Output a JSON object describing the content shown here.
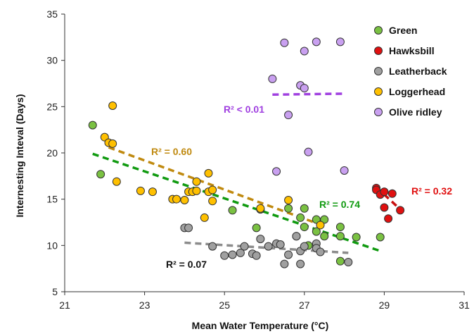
{
  "chart_data": {
    "type": "scatter",
    "xlabel": "Mean Water Temperature (°C)",
    "ylabel": "Internesting Inteval (Days)",
    "xlim": [
      21,
      31
    ],
    "ylim": [
      5,
      35
    ],
    "xticks": [
      "21",
      "23",
      "25",
      "27",
      "29",
      "31"
    ],
    "yticks": [
      "5",
      "10",
      "15",
      "20",
      "25",
      "30",
      "35"
    ],
    "grid": false,
    "legend": "top-right",
    "series": [
      {
        "name": "Green",
        "color": "#7ac142",
        "points": [
          [
            21.7,
            23.0
          ],
          [
            21.9,
            17.7
          ],
          [
            25.2,
            13.8
          ],
          [
            25.8,
            11.9
          ],
          [
            25.9,
            13.9
          ],
          [
            26.6,
            14.0
          ],
          [
            26.8,
            11.0
          ],
          [
            26.9,
            13.0
          ],
          [
            27.0,
            14.0
          ],
          [
            27.0,
            12.0
          ],
          [
            27.1,
            10.0
          ],
          [
            27.3,
            12.8
          ],
          [
            27.3,
            11.5
          ],
          [
            27.5,
            12.8
          ],
          [
            27.5,
            11.0
          ],
          [
            27.9,
            12.0
          ],
          [
            27.9,
            11.0
          ],
          [
            27.9,
            8.3
          ],
          [
            28.3,
            10.9
          ],
          [
            28.9,
            10.9
          ]
        ],
        "trend": {
          "x": [
            21.7,
            28.9
          ],
          "y": [
            19.9,
            9.4
          ],
          "label": "R² = 0.74"
        }
      },
      {
        "name": "Hawksbill",
        "color": "#e01010",
        "points": [
          [
            28.8,
            16.2
          ],
          [
            28.8,
            16.0
          ],
          [
            28.9,
            15.5
          ],
          [
            29.0,
            14.1
          ],
          [
            29.0,
            15.8
          ],
          [
            29.1,
            12.9
          ],
          [
            29.2,
            15.6
          ],
          [
            29.4,
            13.8
          ]
        ],
        "trend": {
          "x": [
            28.8,
            29.4
          ],
          "y": [
            16.3,
            13.9
          ],
          "label": "R² = 0.32"
        }
      },
      {
        "name": "Leatherback",
        "color": "#a0a0a0",
        "points": [
          [
            24.0,
            11.9
          ],
          [
            24.1,
            11.9
          ],
          [
            24.7,
            9.9
          ],
          [
            25.0,
            8.9
          ],
          [
            25.2,
            9.0
          ],
          [
            25.4,
            9.2
          ],
          [
            25.5,
            9.9
          ],
          [
            25.7,
            9.1
          ],
          [
            25.8,
            8.9
          ],
          [
            25.9,
            10.7
          ],
          [
            26.1,
            9.9
          ],
          [
            26.3,
            10.2
          ],
          [
            26.4,
            10.1
          ],
          [
            26.5,
            8.0
          ],
          [
            26.6,
            9.0
          ],
          [
            26.8,
            11.0
          ],
          [
            26.9,
            9.4
          ],
          [
            26.9,
            8.0
          ],
          [
            27.0,
            9.9
          ],
          [
            27.3,
            10.2
          ],
          [
            27.3,
            9.7
          ],
          [
            27.4,
            9.3
          ],
          [
            28.1,
            8.2
          ]
        ],
        "trend": {
          "x": [
            24.0,
            28.1
          ],
          "y": [
            10.3,
            9.2
          ],
          "label": "R² = 0.07"
        }
      },
      {
        "name": "Loggerhead",
        "color": "#ffc000",
        "points": [
          [
            22.0,
            21.7
          ],
          [
            22.1,
            21.1
          ],
          [
            22.2,
            25.1
          ],
          [
            22.2,
            21.0
          ],
          [
            22.3,
            16.9
          ],
          [
            22.9,
            15.9
          ],
          [
            23.2,
            15.8
          ],
          [
            23.7,
            15.0
          ],
          [
            23.8,
            15.0
          ],
          [
            24.0,
            14.9
          ],
          [
            24.1,
            15.8
          ],
          [
            24.2,
            15.8
          ],
          [
            24.3,
            16.9
          ],
          [
            24.3,
            15.9
          ],
          [
            24.5,
            13.0
          ],
          [
            24.6,
            17.8
          ],
          [
            24.6,
            15.8
          ],
          [
            24.7,
            14.8
          ],
          [
            24.7,
            16.0
          ],
          [
            25.9,
            14.0
          ],
          [
            26.6,
            14.9
          ],
          [
            27.4,
            12.2
          ]
        ],
        "trend": {
          "x": [
            22.1,
            27.5
          ],
          "y": [
            20.6,
            12.1
          ],
          "label": "R² = 0.60"
        }
      },
      {
        "name": "Olive ridley",
        "color": "#c9a0f0",
        "points": [
          [
            26.2,
            28.0
          ],
          [
            26.3,
            18.0
          ],
          [
            26.5,
            31.9
          ],
          [
            26.6,
            24.1
          ],
          [
            26.9,
            27.3
          ],
          [
            27.0,
            31.0
          ],
          [
            27.0,
            27.0
          ],
          [
            27.1,
            20.1
          ],
          [
            27.3,
            32.0
          ],
          [
            27.9,
            32.0
          ],
          [
            28.0,
            18.1
          ]
        ],
        "trend": {
          "x": [
            26.2,
            28.0
          ],
          "y": [
            26.3,
            26.4
          ],
          "label": "R² < 0.01"
        }
      }
    ]
  }
}
